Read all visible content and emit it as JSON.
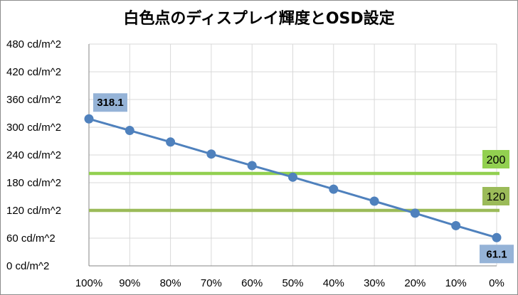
{
  "chart_data": {
    "type": "line",
    "title": "白色点のディスプレイ輝度とOSD設定",
    "xlabel": "",
    "ylabel": "",
    "categories": [
      "100%",
      "90%",
      "80%",
      "70%",
      "60%",
      "50%",
      "40%",
      "30%",
      "20%",
      "10%",
      "0%"
    ],
    "series": [
      {
        "name": "",
        "color": "#4f81bd",
        "values": [
          318.1,
          293,
          268,
          242,
          217,
          192,
          166,
          140,
          114,
          87,
          61.1
        ]
      }
    ],
    "reference_lines": [
      {
        "value": 200,
        "label": "200",
        "color": "#92d050"
      },
      {
        "value": 120,
        "label": "120",
        "color": "#9bbb59"
      }
    ],
    "data_labels": [
      {
        "index": 0,
        "text": "318.1"
      },
      {
        "index": 10,
        "text": "61.1"
      }
    ],
    "yticks": [
      {
        "value": 0,
        "label": "0 cd/m^2"
      },
      {
        "value": 60,
        "label": "60 cd/m^2"
      },
      {
        "value": 120,
        "label": "120 cd/m^2"
      },
      {
        "value": 180,
        "label": "180 cd/m^2"
      },
      {
        "value": 240,
        "label": "240 cd/m^2"
      },
      {
        "value": 300,
        "label": "300 cd/m^2"
      },
      {
        "value": 360,
        "label": "360 cd/m^2"
      },
      {
        "value": 420,
        "label": "420 cd/m^2"
      },
      {
        "value": 480,
        "label": "480 cd/m^2"
      }
    ],
    "ylim": [
      0,
      480
    ],
    "grid": "vertical-and-horizontal",
    "legend": "none",
    "label_box_color": "#95b3d7"
  }
}
